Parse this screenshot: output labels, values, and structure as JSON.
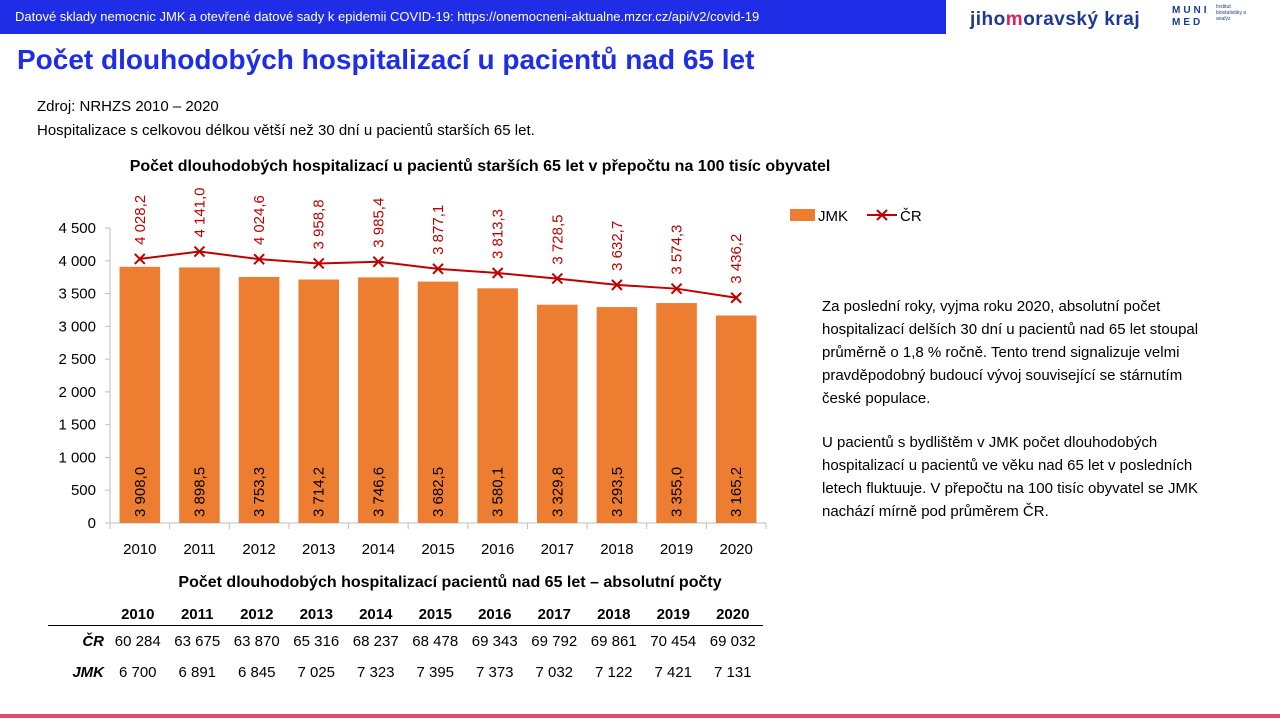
{
  "header": {
    "source_line": "Datové sklady nemocnic JMK a otevřené datové sady k epidemii COVID-19: https://onemocneni-aktualne.mzcr.cz/api/v2/covid-19",
    "logo_jmk_pre": "jiho",
    "logo_jmk_accent": "m",
    "logo_jmk_post": "oravský kraj",
    "logo_muni_1": "MUNI",
    "logo_muni_2": "MED",
    "logo_inst": "Institut biostatistiky a analýz",
    "bar_color": "#1f2ee6",
    "accent_color": "#e8496b"
  },
  "page": {
    "title": "Počet dlouhodobých hospitalizací u pacientů nad 65 let",
    "source": "Zdroj: NRHZS 2010 – 2020",
    "subtitle": "Hospitalizace s celkovou délkou větší než 30 dní u pacientů starších 65 let."
  },
  "chart_data": {
    "type": "bar",
    "title": "Počet dlouhodobých hospitalizací u pacientů starších 65 let v přepočtu na 100 tisíc obyvatel",
    "categories": [
      "2010",
      "2011",
      "2012",
      "2013",
      "2014",
      "2015",
      "2016",
      "2017",
      "2018",
      "2019",
      "2020"
    ],
    "series": [
      {
        "name": "JMK",
        "type": "bar",
        "color": "#ed7d31",
        "values": [
          3908.0,
          3898.5,
          3753.3,
          3714.2,
          3746.6,
          3682.5,
          3580.1,
          3329.8,
          3293.5,
          3355.0,
          3165.2
        ],
        "labels": [
          "3 908,0",
          "3 898,5",
          "3 753,3",
          "3 714,2",
          "3 746,6",
          "3 682,5",
          "3 580,1",
          "3 329,8",
          "3 293,5",
          "3 355,0",
          "3 165,2"
        ]
      },
      {
        "name": "ČR",
        "type": "line",
        "color": "#c00000",
        "values": [
          4028.2,
          4141.0,
          4024.6,
          3958.8,
          3985.4,
          3877.1,
          3813.3,
          3728.5,
          3632.7,
          3574.3,
          3436.2
        ],
        "labels": [
          "4 028,2",
          "4 141,0",
          "4 024,6",
          "3 958,8",
          "3 985,4",
          "3 877,1",
          "3 813,3",
          "3 728,5",
          "3 632,7",
          "3 574,3",
          "3 436,2"
        ]
      }
    ],
    "ylim": [
      0,
      4500
    ],
    "yticks": [
      0,
      500,
      1000,
      1500,
      2000,
      2500,
      3000,
      3500,
      4000,
      4500
    ],
    "ytick_labels": [
      "0",
      "500",
      "1 000",
      "1 500",
      "2 000",
      "2 500",
      "3 000",
      "3 500",
      "4 000",
      "4 500"
    ],
    "grid": false,
    "legend": "top-right"
  },
  "side_text": {
    "p1": "Za poslední roky, vyjma roku 2020, absolutní počet hospitalizací delších 30 dní u pacientů nad 65 let stoupal průměrně o 1,8 % ročně. Tento trend signalizuje velmi pravděpodobný budoucí vývoj související se stárnutím české populace.",
    "p2": "U pacientů s bydlištěm v JMK počet dlouhodobých hospitalizací u pacientů ve věku nad 65 let v posledních letech fluktuuje. V přepočtu na 100 tisíc obyvatel se JMK nachází mírně pod průměrem ČR."
  },
  "table": {
    "title": "Počet dlouhodobých hospitalizací pacientů nad 65 let – absolutní počty",
    "years": [
      "2010",
      "2011",
      "2012",
      "2013",
      "2014",
      "2015",
      "2016",
      "2017",
      "2018",
      "2019",
      "2020"
    ],
    "rows": [
      {
        "label": "ČR",
        "values": [
          "60 284",
          "63 675",
          "63 870",
          "65 316",
          "68 237",
          "68 478",
          "69 343",
          "69 792",
          "69 861",
          "70 454",
          "69 032"
        ]
      },
      {
        "label": "JMK",
        "values": [
          "6 700",
          "6 891",
          "6 845",
          "7 025",
          "7 323",
          "7 395",
          "7 373",
          "7 032",
          "7 122",
          "7 421",
          "7 131"
        ]
      }
    ]
  }
}
